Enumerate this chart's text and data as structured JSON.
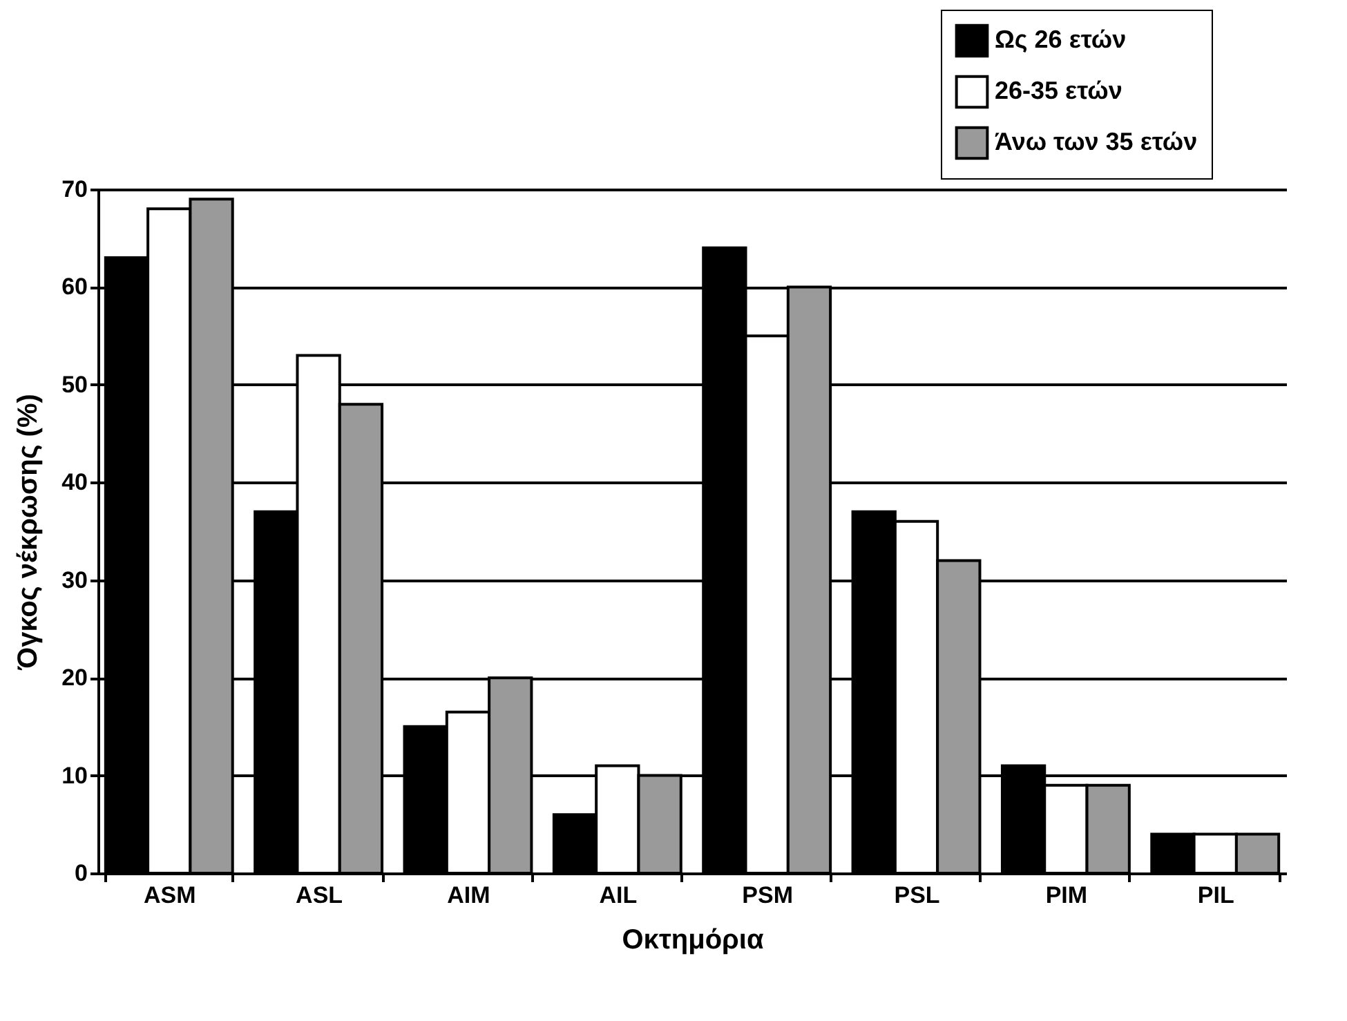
{
  "chart_data": {
    "type": "bar",
    "xlabel": "Οκτημόρια",
    "ylabel": "Όγκος νέκρωσης (%)",
    "categories": [
      "ASM",
      "ASL",
      "AIM",
      "AIL",
      "PSM",
      "PSL",
      "PIM",
      "PIL"
    ],
    "series": [
      {
        "name": "Ως 26 ετών",
        "color": "#000000",
        "values": [
          63,
          37,
          15,
          6,
          64,
          37,
          11,
          4
        ]
      },
      {
        "name": "26-35 ετών",
        "color": "#ffffff",
        "values": [
          68,
          53,
          16.5,
          11,
          55,
          36,
          9,
          4
        ]
      },
      {
        "name": "Άνω των 35 ετών",
        "color": "#9a9a9a",
        "values": [
          69,
          48,
          20,
          10,
          60,
          32,
          9,
          4
        ]
      }
    ],
    "ylim": [
      0,
      70
    ],
    "yticks": [
      0,
      10,
      20,
      30,
      40,
      50,
      60,
      70
    ],
    "grid": "y",
    "legend": "top right"
  }
}
